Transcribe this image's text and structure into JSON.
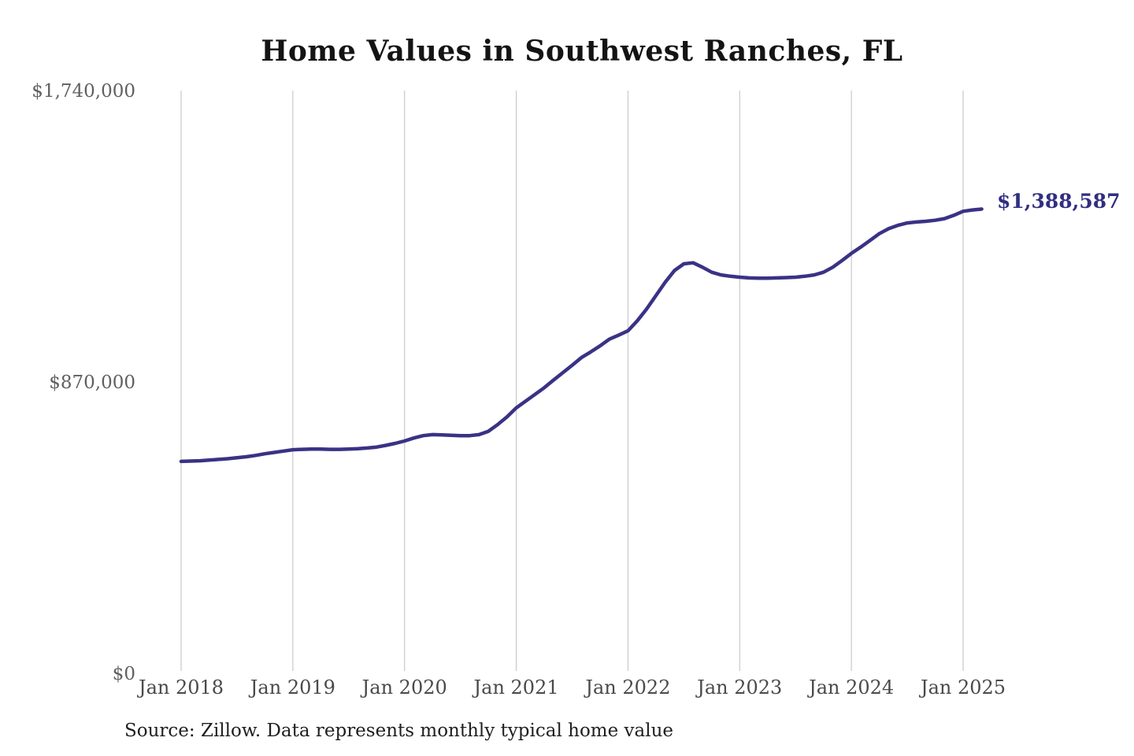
{
  "title": "Home Values in Southwest Ranches, FL",
  "source_note": "Source: Zillow. Data represents monthly typical home value",
  "end_value_label": "$1,388,587",
  "colors": {
    "background": "#ffffff",
    "line": "#3a3285",
    "end_label": "#312e81",
    "gridline": "#c9c9c9",
    "title_text": "#141414",
    "y_axis_text": "#606060",
    "x_axis_text": "#4a4a4a",
    "source_text": "#1f1f1f"
  },
  "chart_data": {
    "type": "line",
    "title": "Home Values in Southwest Ranches, FL",
    "xlabel": "",
    "ylabel": "",
    "ylim": [
      0,
      1740000
    ],
    "grid": "vertical-only",
    "legend": "none",
    "line_color": "#3a3285",
    "x_ticks": [
      "Jan 2018",
      "Jan 2019",
      "Jan 2020",
      "Jan 2021",
      "Jan 2022",
      "Jan 2023",
      "Jan 2024",
      "Jan 2025"
    ],
    "y_ticks": [
      {
        "label": "$1,740,000",
        "value": 1740000
      },
      {
        "label": "$870,000",
        "value": 870000
      },
      {
        "label": "$0",
        "value": 0
      }
    ],
    "x_start_month": "Jan 2018",
    "x_end_month": "Mar 2025",
    "final_value": 1388587,
    "values_monthly": [
      635000,
      636000,
      637000,
      639000,
      641000,
      643000,
      646000,
      649000,
      653000,
      658000,
      662000,
      666000,
      670000,
      671000,
      672000,
      672000,
      671000,
      671000,
      672000,
      673000,
      675000,
      678000,
      683000,
      689000,
      696000,
      705000,
      712000,
      715000,
      714000,
      713000,
      712000,
      712000,
      715000,
      725000,
      745000,
      768000,
      795000,
      815000,
      835000,
      855000,
      878000,
      900000,
      922000,
      945000,
      962000,
      980000,
      1000000,
      1012000,
      1025000,
      1055000,
      1090000,
      1130000,
      1170000,
      1205000,
      1225000,
      1228000,
      1215000,
      1200000,
      1192000,
      1188000,
      1185000,
      1183000,
      1182000,
      1182000,
      1183000,
      1184000,
      1185000,
      1188000,
      1192000,
      1200000,
      1215000,
      1235000,
      1256000,
      1275000,
      1295000,
      1315000,
      1330000,
      1340000,
      1347000,
      1350000,
      1352000,
      1355000,
      1360000,
      1370000,
      1382000,
      1386000,
      1388587
    ]
  }
}
